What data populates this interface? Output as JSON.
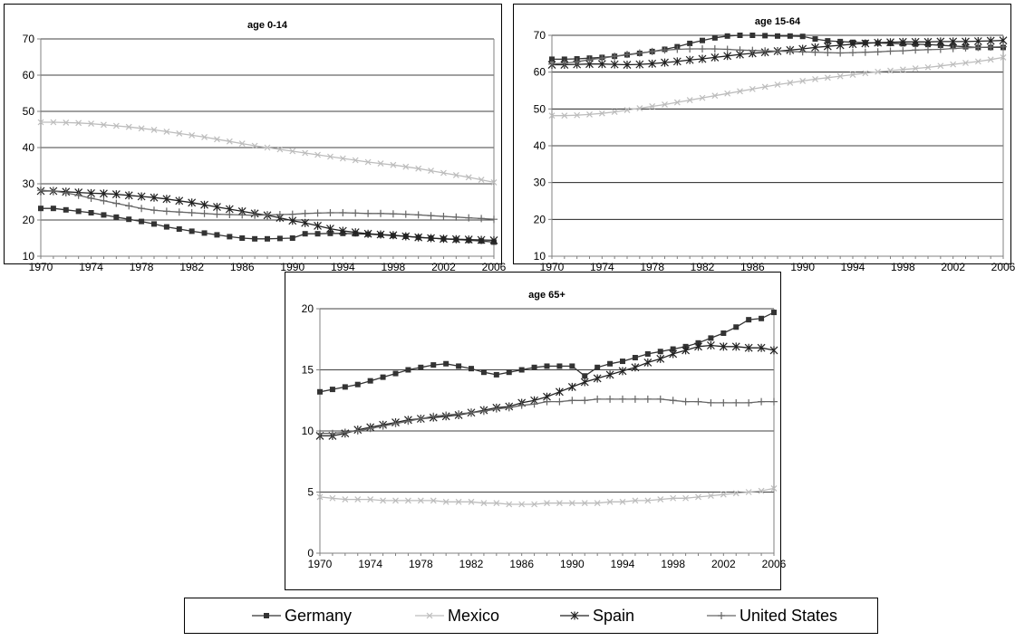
{
  "chart_data": [
    {
      "type": "line",
      "title": "age 0-14",
      "xlabel": "",
      "ylabel": "",
      "xlim": [
        1970,
        2006
      ],
      "ylim": [
        10,
        70
      ],
      "x_ticks": [
        "1970",
        "1974",
        "1978",
        "1982",
        "1986",
        "1990",
        "1994",
        "1998",
        "2002",
        "2006"
      ],
      "y_ticks": [
        10,
        20,
        30,
        40,
        50,
        60,
        70
      ],
      "grid": "horizontal",
      "x": [
        1970,
        1971,
        1972,
        1973,
        1974,
        1975,
        1976,
        1977,
        1978,
        1979,
        1980,
        1981,
        1982,
        1983,
        1984,
        1985,
        1986,
        1987,
        1988,
        1989,
        1990,
        1991,
        1992,
        1993,
        1994,
        1995,
        1996,
        1997,
        1998,
        1999,
        2000,
        2001,
        2002,
        2003,
        2004,
        2005,
        2006
      ],
      "series": [
        {
          "name": "Germany",
          "values": [
            23.2,
            23.2,
            22.8,
            22.4,
            22.0,
            21.4,
            20.8,
            20.2,
            19.6,
            18.9,
            18.1,
            17.5,
            16.9,
            16.4,
            15.9,
            15.4,
            15.0,
            14.8,
            14.8,
            14.9,
            15.0,
            16.2,
            16.2,
            16.3,
            16.3,
            16.2,
            16.1,
            15.9,
            15.7,
            15.5,
            15.2,
            15.0,
            14.8,
            14.6,
            14.4,
            14.2,
            13.9
          ]
        },
        {
          "name": "Mexico",
          "values": [
            47.0,
            47.0,
            46.9,
            46.8,
            46.6,
            46.3,
            46.0,
            45.7,
            45.3,
            44.9,
            44.4,
            43.9,
            43.4,
            42.9,
            42.3,
            41.7,
            41.1,
            40.5,
            40.0,
            39.5,
            39.0,
            38.5,
            38.0,
            37.5,
            37.0,
            36.5,
            36.0,
            35.6,
            35.2,
            34.7,
            34.2,
            33.6,
            33.0,
            32.4,
            31.8,
            31.1,
            30.4
          ]
        },
        {
          "name": "Spain",
          "values": [
            28.0,
            28.0,
            27.8,
            27.6,
            27.4,
            27.3,
            27.1,
            26.8,
            26.5,
            26.2,
            25.8,
            25.3,
            24.8,
            24.2,
            23.6,
            23.0,
            22.4,
            21.8,
            21.3,
            20.6,
            19.8,
            19.2,
            18.4,
            17.6,
            17.0,
            16.6,
            16.2,
            16.0,
            15.8,
            15.5,
            15.2,
            15.0,
            14.8,
            14.7,
            14.6,
            14.5,
            14.4
          ]
        },
        {
          "name": "United States",
          "values": [
            28.2,
            28.0,
            27.5,
            26.8,
            26.0,
            25.3,
            24.6,
            23.9,
            23.2,
            22.7,
            22.4,
            22.2,
            22.0,
            21.8,
            21.6,
            21.5,
            21.4,
            21.3,
            21.4,
            21.5,
            21.6,
            21.8,
            21.9,
            22.0,
            22.0,
            21.9,
            21.8,
            21.8,
            21.7,
            21.6,
            21.4,
            21.2,
            21.0,
            20.8,
            20.6,
            20.4,
            20.2
          ]
        }
      ]
    },
    {
      "type": "line",
      "title": "age 15-64",
      "xlabel": "",
      "ylabel": "",
      "xlim": [
        1970,
        2006
      ],
      "ylim": [
        10,
        70
      ],
      "x_ticks": [
        "1970",
        "1974",
        "1978",
        "1982",
        "1986",
        "1990",
        "1994",
        "1998",
        "2002",
        "2006"
      ],
      "y_ticks": [
        10,
        20,
        30,
        40,
        50,
        60,
        70
      ],
      "grid": "horizontal",
      "x": [
        1970,
        1971,
        1972,
        1973,
        1974,
        1975,
        1976,
        1977,
        1978,
        1979,
        1980,
        1981,
        1982,
        1983,
        1984,
        1985,
        1986,
        1987,
        1988,
        1989,
        1990,
        1991,
        1992,
        1993,
        1994,
        1995,
        1996,
        1997,
        1998,
        1999,
        2000,
        2001,
        2002,
        2003,
        2004,
        2005,
        2006
      ],
      "series": [
        {
          "name": "Germany",
          "values": [
            63.5,
            63.5,
            63.6,
            63.8,
            64.0,
            64.3,
            64.7,
            65.1,
            65.6,
            66.2,
            66.9,
            67.8,
            68.6,
            69.3,
            69.8,
            70.0,
            70.0,
            69.9,
            69.8,
            69.8,
            69.7,
            69.0,
            68.5,
            68.3,
            68.1,
            68.0,
            67.9,
            67.8,
            67.7,
            67.6,
            67.5,
            67.3,
            67.1,
            66.9,
            66.7,
            66.7,
            66.7
          ]
        },
        {
          "name": "Mexico",
          "values": [
            48.2,
            48.2,
            48.3,
            48.5,
            48.8,
            49.2,
            49.7,
            50.2,
            50.7,
            51.2,
            51.8,
            52.4,
            53.0,
            53.6,
            54.2,
            54.8,
            55.4,
            56.0,
            56.6,
            57.1,
            57.6,
            58.1,
            58.5,
            58.9,
            59.3,
            59.7,
            60.1,
            60.4,
            60.7,
            61.0,
            61.3,
            61.7,
            62.1,
            62.5,
            62.9,
            63.4,
            64.0
          ]
        },
        {
          "name": "Spain",
          "values": [
            62.0,
            62.0,
            62.1,
            62.2,
            62.2,
            62.1,
            62.0,
            62.1,
            62.3,
            62.6,
            62.9,
            63.3,
            63.6,
            64.0,
            64.4,
            64.8,
            65.1,
            65.4,
            65.7,
            66.0,
            66.3,
            66.7,
            67.0,
            67.3,
            67.6,
            67.8,
            68.0,
            68.1,
            68.2,
            68.2,
            68.2,
            68.3,
            68.3,
            68.3,
            68.4,
            68.5,
            68.6
          ]
        },
        {
          "name": "United States",
          "values": [
            62.2,
            62.4,
            62.8,
            63.4,
            63.8,
            64.3,
            64.8,
            65.2,
            65.6,
            66.0,
            66.2,
            66.3,
            66.3,
            66.3,
            66.2,
            66.0,
            65.9,
            65.8,
            65.7,
            65.6,
            65.5,
            65.4,
            65.3,
            65.2,
            65.3,
            65.4,
            65.5,
            65.7,
            65.8,
            66.0,
            66.1,
            66.2,
            66.4,
            66.6,
            66.7,
            66.8,
            66.9
          ]
        }
      ]
    },
    {
      "type": "line",
      "title": "age 65+",
      "xlabel": "",
      "ylabel": "",
      "xlim": [
        1970,
        2006
      ],
      "ylim": [
        0,
        20
      ],
      "x_ticks": [
        "1970",
        "1974",
        "1978",
        "1982",
        "1986",
        "1990",
        "1994",
        "1998",
        "2002",
        "2006"
      ],
      "y_ticks": [
        0,
        5,
        10,
        15,
        20
      ],
      "grid": "horizontal",
      "x": [
        1970,
        1971,
        1972,
        1973,
        1974,
        1975,
        1976,
        1977,
        1978,
        1979,
        1980,
        1981,
        1982,
        1983,
        1984,
        1985,
        1986,
        1987,
        1988,
        1989,
        1990,
        1991,
        1992,
        1993,
        1994,
        1995,
        1996,
        1997,
        1998,
        1999,
        2000,
        2001,
        2002,
        2003,
        2004,
        2005,
        2006
      ],
      "series": [
        {
          "name": "Germany",
          "values": [
            13.2,
            13.4,
            13.6,
            13.8,
            14.1,
            14.4,
            14.7,
            15.0,
            15.2,
            15.4,
            15.5,
            15.3,
            15.1,
            14.8,
            14.6,
            14.8,
            15.0,
            15.2,
            15.3,
            15.3,
            15.3,
            14.5,
            15.2,
            15.5,
            15.7,
            16.0,
            16.3,
            16.5,
            16.7,
            16.9,
            17.2,
            17.6,
            18.0,
            18.5,
            19.1,
            19.2,
            19.7
          ]
        },
        {
          "name": "Mexico",
          "values": [
            4.6,
            4.5,
            4.4,
            4.4,
            4.4,
            4.3,
            4.3,
            4.3,
            4.3,
            4.3,
            4.2,
            4.2,
            4.2,
            4.1,
            4.1,
            4.0,
            4.0,
            4.0,
            4.1,
            4.1,
            4.1,
            4.1,
            4.1,
            4.2,
            4.2,
            4.3,
            4.3,
            4.4,
            4.5,
            4.5,
            4.6,
            4.7,
            4.8,
            4.9,
            5.0,
            5.1,
            5.3
          ]
        },
        {
          "name": "Spain",
          "values": [
            9.6,
            9.6,
            9.8,
            10.1,
            10.3,
            10.5,
            10.7,
            10.9,
            11.0,
            11.1,
            11.2,
            11.3,
            11.5,
            11.7,
            11.9,
            12.0,
            12.3,
            12.5,
            12.8,
            13.2,
            13.6,
            14.0,
            14.3,
            14.6,
            14.9,
            15.2,
            15.6,
            15.9,
            16.3,
            16.6,
            16.9,
            17.0,
            16.9,
            16.9,
            16.8,
            16.8,
            16.6
          ]
        },
        {
          "name": "United States",
          "values": [
            9.8,
            9.8,
            9.9,
            10.0,
            10.2,
            10.4,
            10.6,
            10.8,
            11.0,
            11.2,
            11.3,
            11.4,
            11.5,
            11.6,
            11.8,
            11.9,
            12.1,
            12.2,
            12.4,
            12.4,
            12.5,
            12.5,
            12.6,
            12.6,
            12.6,
            12.6,
            12.6,
            12.6,
            12.5,
            12.4,
            12.4,
            12.3,
            12.3,
            12.3,
            12.3,
            12.4,
            12.4
          ]
        }
      ]
    }
  ],
  "legend": {
    "placement": "bottom",
    "items": [
      {
        "name": "Germany",
        "marker": "square"
      },
      {
        "name": "Mexico",
        "marker": "x"
      },
      {
        "name": "Spain",
        "marker": "asterisk"
      },
      {
        "name": "United States",
        "marker": "plus"
      }
    ]
  },
  "colors": {
    "Germany": "#333333",
    "Mexico": "#bdbdbd",
    "Spain": "#222222",
    "United States": "#666666",
    "grid": "#000000",
    "axis": "#808080"
  }
}
